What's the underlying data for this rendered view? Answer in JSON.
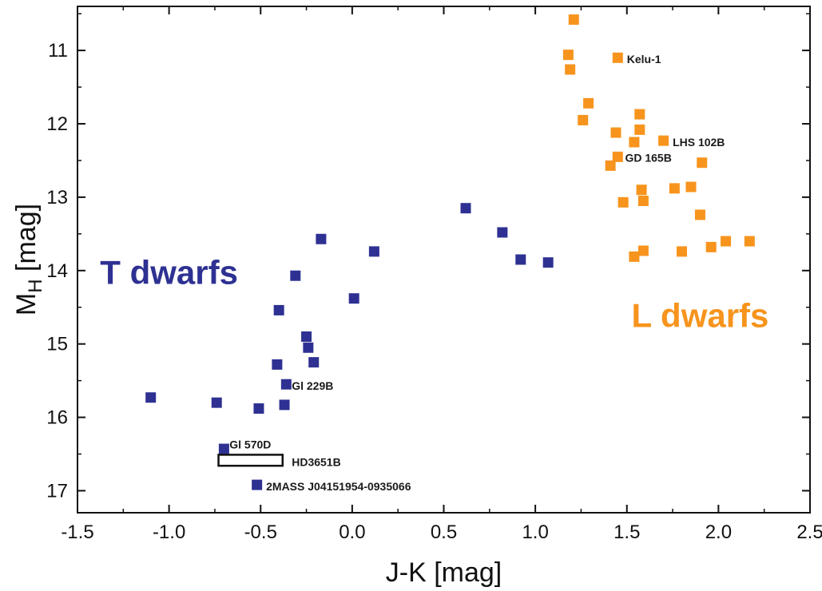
{
  "chart_data": {
    "type": "scatter",
    "xlabel": "J-K [mag]",
    "ylabel_main": "M",
    "ylabel_sub": "H",
    "ylabel_tail": " [mag]",
    "xlim": [
      -1.5,
      2.5
    ],
    "ylim": [
      17.3,
      10.4
    ],
    "y_inverted": true,
    "grid": false,
    "xticks": [
      -1.5,
      -1.0,
      -0.5,
      0.0,
      0.5,
      1.0,
      1.5,
      2.0,
      2.5
    ],
    "xtick_labels": [
      "-1.5",
      "-1.0",
      "-0.5",
      "0.0",
      "0.5",
      "1.0",
      "1.5",
      "2.0",
      "2.5"
    ],
    "yticks": [
      11,
      12,
      13,
      14,
      15,
      16,
      17
    ],
    "ytick_labels": [
      "11",
      "12",
      "13",
      "14",
      "15",
      "16",
      "17"
    ],
    "colors": {
      "T": "#2e3192",
      "L": "#f7941d",
      "axis": "#111111"
    },
    "series": [
      {
        "name": "T dwarfs",
        "color": "#2e3192",
        "marker": "square",
        "points": [
          [
            -1.1,
            15.73
          ],
          [
            -0.74,
            15.8
          ],
          [
            -0.51,
            15.88
          ],
          [
            -0.37,
            15.83
          ],
          [
            -0.41,
            15.28
          ],
          [
            -0.36,
            15.55
          ],
          [
            -0.21,
            15.25
          ],
          [
            -0.24,
            15.05
          ],
          [
            -0.25,
            14.9
          ],
          [
            -0.4,
            14.54
          ],
          [
            -0.31,
            14.07
          ],
          [
            -0.17,
            13.57
          ],
          [
            0.01,
            14.38
          ],
          [
            0.12,
            13.74
          ],
          [
            0.62,
            13.15
          ],
          [
            0.82,
            13.48
          ],
          [
            0.92,
            13.85
          ],
          [
            1.07,
            13.89
          ],
          [
            -0.7,
            16.43
          ],
          [
            -0.52,
            16.92
          ]
        ]
      },
      {
        "name": "L dwarfs",
        "color": "#f7941d",
        "marker": "square",
        "points": [
          [
            1.21,
            10.58
          ],
          [
            1.18,
            11.06
          ],
          [
            1.19,
            11.26
          ],
          [
            1.45,
            11.1
          ],
          [
            1.29,
            11.72
          ],
          [
            1.26,
            11.95
          ],
          [
            1.57,
            11.87
          ],
          [
            1.57,
            12.08
          ],
          [
            1.44,
            12.12
          ],
          [
            1.54,
            12.25
          ],
          [
            1.7,
            12.23
          ],
          [
            1.45,
            12.45
          ],
          [
            1.41,
            12.57
          ],
          [
            1.91,
            12.53
          ],
          [
            1.58,
            12.9
          ],
          [
            1.76,
            12.88
          ],
          [
            1.85,
            12.86
          ],
          [
            1.48,
            13.07
          ],
          [
            1.59,
            13.05
          ],
          [
            1.9,
            13.24
          ],
          [
            1.54,
            13.81
          ],
          [
            1.59,
            13.73
          ],
          [
            1.8,
            13.74
          ],
          [
            1.96,
            13.68
          ],
          [
            2.04,
            13.6
          ],
          [
            2.17,
            13.6
          ]
        ]
      }
    ],
    "box": {
      "x0": -0.73,
      "x1": -0.38,
      "y0": 16.51,
      "y1": 16.66,
      "label": "HD3651B"
    },
    "annotations": [
      {
        "text": "Kelu-1",
        "x": 1.5,
        "y": 11.12
      },
      {
        "text": "LHS 102B",
        "x": 1.75,
        "y": 12.25
      },
      {
        "text": "GD 165B",
        "x": 1.49,
        "y": 12.46
      },
      {
        "text": "Gl 229B",
        "x": -0.33,
        "y": 15.57
      },
      {
        "text": "Gl 570D",
        "x": -0.67,
        "y": 16.37
      },
      {
        "text": "HD3651B",
        "x": -0.33,
        "y": 16.61
      },
      {
        "text": "2MASS J04151954-0935066",
        "x": -0.47,
        "y": 16.94
      }
    ],
    "group_labels": [
      {
        "text": "T dwarfs",
        "x": -1.0,
        "y": 14.18,
        "color": "#2e3192"
      },
      {
        "text": "L dwarfs",
        "x": 1.9,
        "y": 14.77,
        "color": "#f7941d"
      }
    ]
  }
}
